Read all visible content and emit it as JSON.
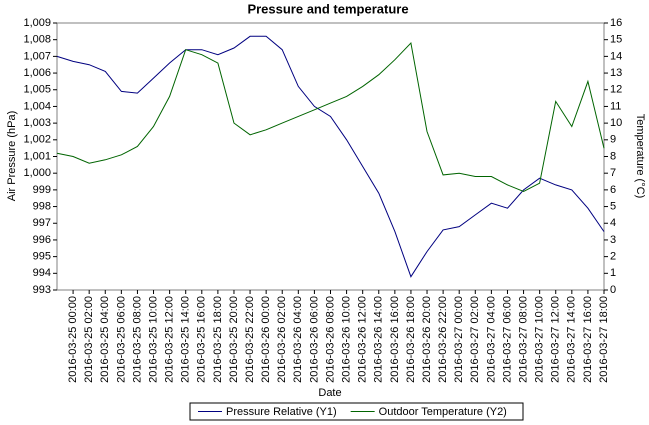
{
  "chart_data": {
    "type": "line",
    "title": "Pressure and temperature",
    "xlabel": "Date",
    "ylabel": "Air Pressure (hPa)",
    "y2label": "Temperature (°C)",
    "x": [
      "2016-03-24 22:00",
      "2016-03-25 00:00",
      "2016-03-25 02:00",
      "2016-03-25 04:00",
      "2016-03-25 06:00",
      "2016-03-25 08:00",
      "2016-03-25 10:00",
      "2016-03-25 12:00",
      "2016-03-25 14:00",
      "2016-03-25 16:00",
      "2016-03-25 18:00",
      "2016-03-25 20:00",
      "2016-03-25 22:00",
      "2016-03-26 00:00",
      "2016-03-26 02:00",
      "2016-03-26 04:00",
      "2016-03-26 06:00",
      "2016-03-26 08:00",
      "2016-03-26 10:00",
      "2016-03-26 12:00",
      "2016-03-26 14:00",
      "2016-03-26 16:00",
      "2016-03-26 18:00",
      "2016-03-26 20:00",
      "2016-03-26 22:00",
      "2016-03-27 00:00",
      "2016-03-27 02:00",
      "2016-03-27 04:00",
      "2016-03-27 06:00",
      "2016-03-27 08:00",
      "2016-03-27 10:00",
      "2016-03-27 12:00",
      "2016-03-27 14:00",
      "2016-03-27 16:00",
      "2016-03-27 18:00"
    ],
    "series": [
      {
        "name": "Pressure Relative (Y1)",
        "color": "#000080",
        "axis": "y",
        "values": [
          1007.0,
          1006.7,
          1006.5,
          1006.1,
          1004.9,
          1004.8,
          1005.7,
          1006.6,
          1007.4,
          1007.4,
          1007.1,
          1007.5,
          1008.2,
          1008.2,
          1007.4,
          1005.2,
          1004.0,
          1003.4,
          1002.0,
          1000.4,
          998.8,
          996.5,
          993.8,
          995.3,
          996.6,
          996.8,
          997.5,
          998.2,
          997.9,
          999.0,
          999.7,
          999.3,
          999.0,
          997.9,
          996.5
        ]
      },
      {
        "name": "Outdoor Temperature (Y2)",
        "color": "#006400",
        "axis": "y2",
        "values": [
          8.2,
          8.0,
          7.6,
          7.8,
          8.1,
          8.6,
          9.8,
          11.6,
          14.4,
          14.1,
          13.6,
          10.0,
          9.3,
          9.6,
          10.0,
          10.4,
          10.8,
          11.2,
          11.6,
          12.2,
          12.9,
          13.8,
          14.8,
          9.5,
          6.9,
          7.0,
          6.8,
          6.8,
          6.3,
          5.9,
          6.4,
          11.3,
          9.8,
          12.5,
          8.5
        ]
      }
    ],
    "xlim": [
      "2016-03-24 22:00",
      "2016-03-27 18:00"
    ],
    "xticks": [
      "2016-03-25 00:00",
      "2016-03-25 02:00",
      "2016-03-25 04:00",
      "2016-03-25 06:00",
      "2016-03-25 08:00",
      "2016-03-25 10:00",
      "2016-03-25 12:00",
      "2016-03-25 14:00",
      "2016-03-25 16:00",
      "2016-03-25 18:00",
      "2016-03-25 20:00",
      "2016-03-25 22:00",
      "2016-03-26 00:00",
      "2016-03-26 02:00",
      "2016-03-26 04:00",
      "2016-03-26 06:00",
      "2016-03-26 08:00",
      "2016-03-26 10:00",
      "2016-03-26 12:00",
      "2016-03-26 14:00",
      "2016-03-26 16:00",
      "2016-03-26 18:00",
      "2016-03-26 20:00",
      "2016-03-26 22:00",
      "2016-03-27 00:00",
      "2016-03-27 02:00",
      "2016-03-27 04:00",
      "2016-03-27 06:00",
      "2016-03-27 08:00",
      "2016-03-27 10:00",
      "2016-03-27 12:00",
      "2016-03-27 14:00",
      "2016-03-27 16:00",
      "2016-03-27 18:00"
    ],
    "ylim": [
      993,
      1009
    ],
    "yticks": [
      993,
      994,
      995,
      996,
      997,
      998,
      999,
      {
        "value": 1000,
        "label": "1,000"
      },
      {
        "value": 1001,
        "label": "1,001"
      },
      {
        "value": 1002,
        "label": "1,002"
      },
      {
        "value": 1003,
        "label": "1,003"
      },
      {
        "value": 1004,
        "label": "1,004"
      },
      {
        "value": 1005,
        "label": "1,005"
      },
      {
        "value": 1006,
        "label": "1,006"
      },
      {
        "value": 1007,
        "label": "1,007"
      },
      {
        "value": 1008,
        "label": "1,008"
      },
      {
        "value": 1009,
        "label": "1,009"
      }
    ],
    "y2lim": [
      0,
      16
    ],
    "y2ticks": [
      0,
      1,
      2,
      3,
      4,
      5,
      6,
      7,
      8,
      9,
      10,
      11,
      12,
      13,
      14,
      15,
      16
    ],
    "legend": "bottom"
  }
}
